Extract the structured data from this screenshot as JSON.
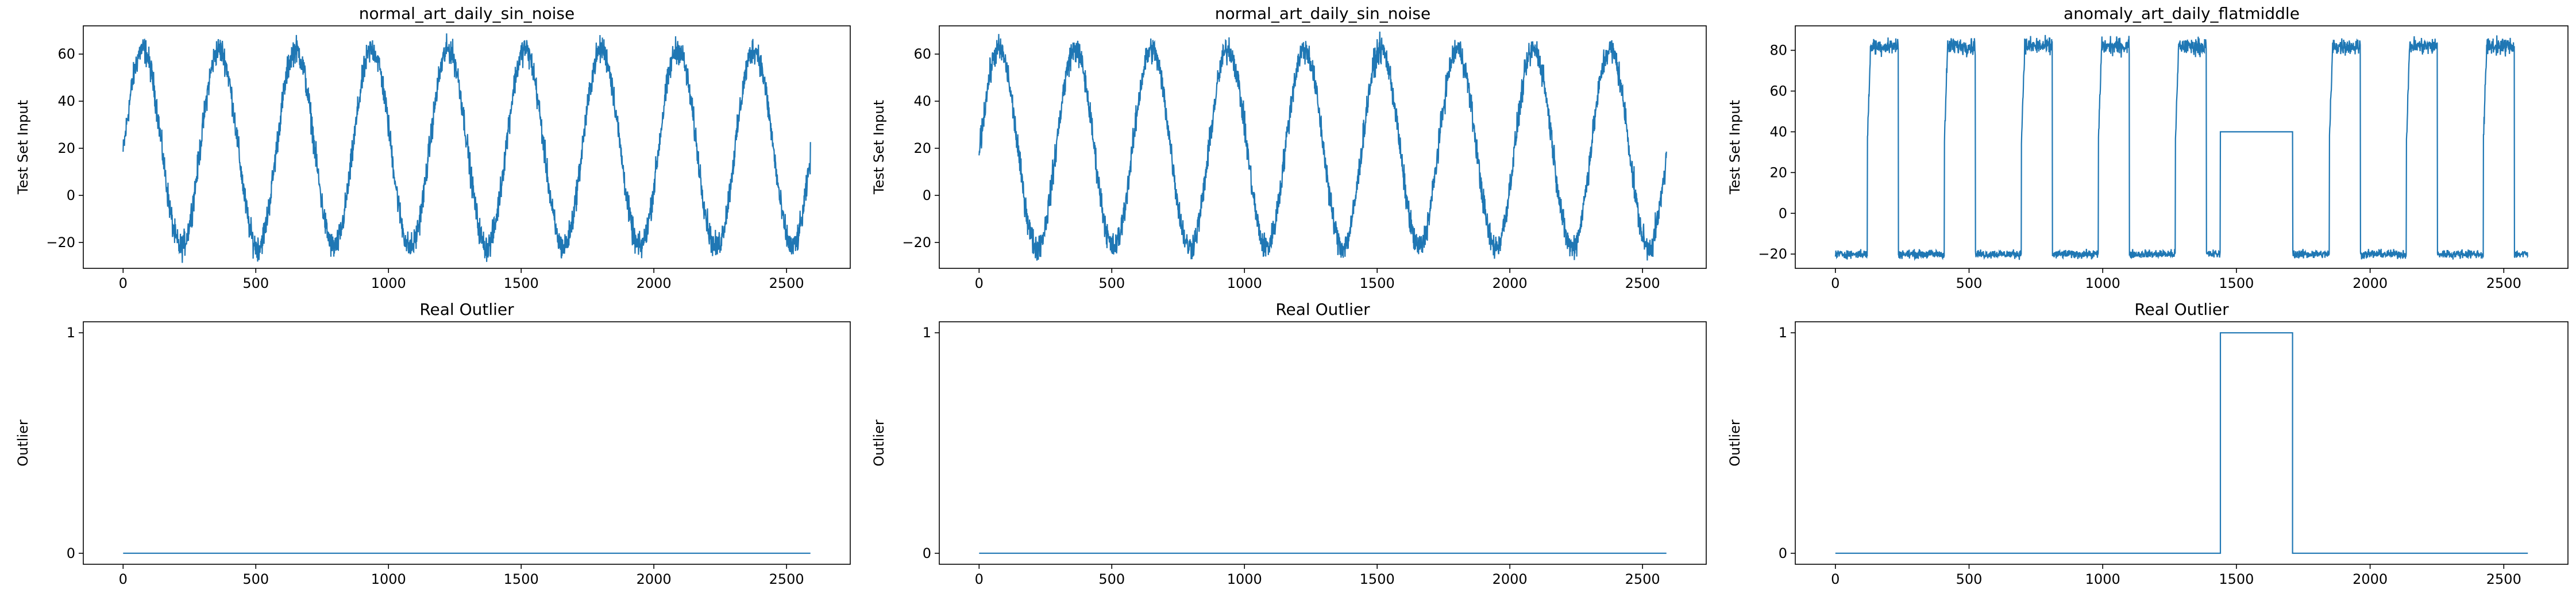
{
  "chart_data": [
    {
      "type": "line",
      "title": "normal_art_daily_sin_noise",
      "xlabel": "",
      "ylabel": "Test Set Input",
      "xlim": [
        -150,
        2740
      ],
      "ylim": [
        -31,
        72
      ],
      "xticks": [
        0,
        500,
        1000,
        1500,
        2000,
        2500
      ],
      "yticks": [
        -20,
        0,
        20,
        40,
        60
      ],
      "grid": false,
      "series": [
        {
          "color": "#1f77b4",
          "n_points": 2591,
          "pattern": "sine_noise",
          "center": 20,
          "amplitude": 42,
          "period": 288,
          "phase_start_value": 18,
          "noise": 5,
          "end_value": 12
        }
      ]
    },
    {
      "type": "line",
      "title": "normal_art_daily_sin_noise",
      "xlabel": "",
      "ylabel": "Test Set Input",
      "xlim": [
        -150,
        2740
      ],
      "ylim": [
        -31,
        72
      ],
      "xticks": [
        0,
        500,
        1000,
        1500,
        2000,
        2500
      ],
      "yticks": [
        -20,
        0,
        20,
        40,
        60
      ],
      "grid": false,
      "series": [
        {
          "color": "#1f77b4",
          "n_points": 2591,
          "pattern": "sine_noise",
          "center": 20,
          "amplitude": 42,
          "period": 288,
          "phase_start_value": 18,
          "noise": 5,
          "end_value": 12
        }
      ]
    },
    {
      "type": "line",
      "title": "anomaly_art_daily_flatmiddle",
      "xlabel": "",
      "ylabel": "Test Set Input",
      "xlim": [
        -150,
        2740
      ],
      "ylim": [
        -27,
        92
      ],
      "xticks": [
        0,
        500,
        1000,
        1500,
        2000,
        2500
      ],
      "yticks": [
        -20,
        0,
        20,
        40,
        60,
        80
      ],
      "grid": false,
      "series": [
        {
          "color": "#1f77b4",
          "n_points": 2591,
          "pattern": "square_noise",
          "low": -20,
          "high": 82,
          "period": 288,
          "high_start": 120,
          "high_end": 235,
          "noise": 3,
          "flat_segment": {
            "x_start": 1440,
            "x_end": 1710,
            "value": 40
          }
        }
      ]
    },
    {
      "type": "line",
      "title": "Real Outlier",
      "xlabel": "",
      "ylabel": "Outlier",
      "xlim": [
        -150,
        2740
      ],
      "ylim": [
        -0.05,
        1.05
      ],
      "xticks": [
        0,
        500,
        1000,
        1500,
        2000,
        2500
      ],
      "yticks": [
        0,
        1
      ],
      "grid": false,
      "series": [
        {
          "color": "#1f77b4",
          "x": [
            0,
            2590
          ],
          "y": [
            0,
            0
          ]
        }
      ]
    },
    {
      "type": "line",
      "title": "Real Outlier",
      "xlabel": "",
      "ylabel": "Outlier",
      "xlim": [
        -150,
        2740
      ],
      "ylim": [
        -0.05,
        1.05
      ],
      "xticks": [
        0,
        500,
        1000,
        1500,
        2000,
        2500
      ],
      "yticks": [
        0,
        1
      ],
      "grid": false,
      "series": [
        {
          "color": "#1f77b4",
          "x": [
            0,
            2590
          ],
          "y": [
            0,
            0
          ]
        }
      ]
    },
    {
      "type": "line",
      "title": "Real Outlier",
      "xlabel": "",
      "ylabel": "Outlier",
      "xlim": [
        -150,
        2740
      ],
      "ylim": [
        -0.05,
        1.05
      ],
      "xticks": [
        0,
        500,
        1000,
        1500,
        2000,
        2500
      ],
      "yticks": [
        0,
        1
      ],
      "grid": false,
      "series": [
        {
          "color": "#1f77b4",
          "x": [
            0,
            1440,
            1440,
            1710,
            1710,
            2590
          ],
          "y": [
            0,
            0,
            1,
            1,
            0,
            0
          ]
        }
      ]
    }
  ]
}
